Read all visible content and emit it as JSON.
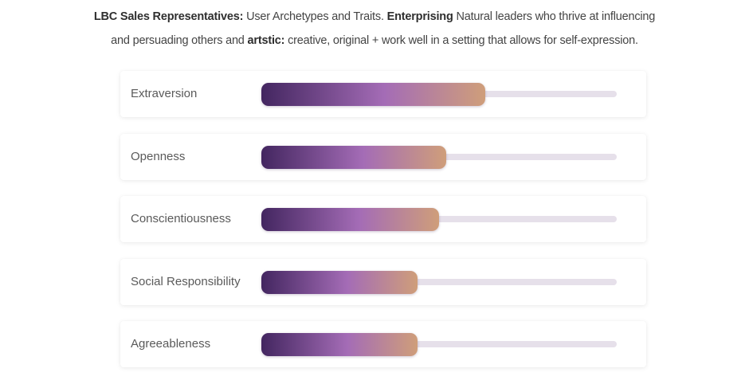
{
  "caption": {
    "line1": [
      {
        "text": "LBC Sales Representatives:",
        "bold": true
      },
      {
        "text": " User Archetypes and Traits. ",
        "bold": false
      },
      {
        "text": "Enterprising",
        "bold": true
      },
      {
        "text": " Natural leaders who thrive at influencing",
        "bold": false
      }
    ],
    "line2": [
      {
        "text": "and persuading others and ",
        "bold": false
      },
      {
        "text": "artstic:",
        "bold": true
      },
      {
        "text": " creative, original + work well in a setting that allows for self-expression.",
        "bold": false
      }
    ]
  },
  "colors": {
    "gradient_start": "#432660",
    "gradient_mid": "#a46cb6",
    "gradient_end": "#cf9e7a",
    "track": "#e6e0ea"
  },
  "chart_data": {
    "type": "bar",
    "orientation": "horizontal",
    "categories": [
      "Extraversion",
      "Openness",
      "Conscientiousness",
      "Social Responsibility",
      "Agreeableness"
    ],
    "values": [
      0.63,
      0.52,
      0.5,
      0.44,
      0.44
    ],
    "value_units": "fraction of full track",
    "xlim": [
      0,
      1
    ],
    "title": "",
    "xlabel": "",
    "ylabel": "",
    "grid": false,
    "legend": "none"
  }
}
